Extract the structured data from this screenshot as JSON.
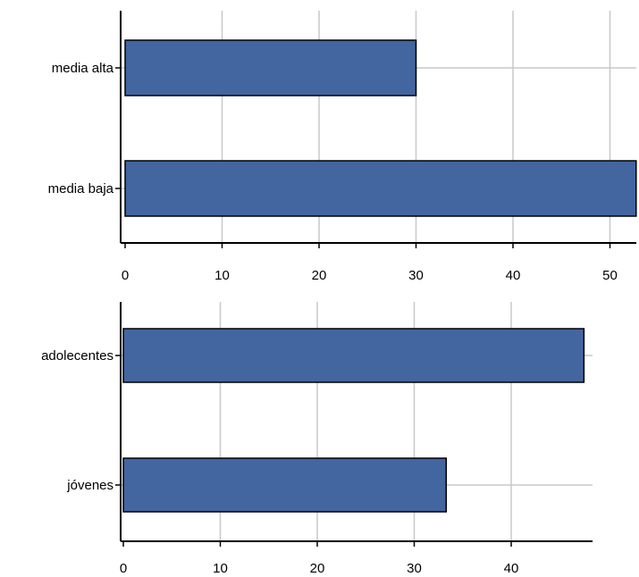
{
  "chart_data": [
    {
      "type": "bar",
      "orientation": "horizontal",
      "categories": [
        "media alta",
        "media baja"
      ],
      "values": [
        30,
        52.7
      ],
      "xlim": [
        0,
        52.7
      ],
      "xticks": [
        0,
        10,
        20,
        30,
        40,
        50
      ],
      "grid": true,
      "bar_color": "#4365a0",
      "title": "",
      "xlabel": "",
      "ylabel": ""
    },
    {
      "type": "bar",
      "orientation": "horizontal",
      "categories": [
        "adolecentes",
        "jóvenes"
      ],
      "values": [
        47.5,
        33.3
      ],
      "xlim": [
        0,
        48.3
      ],
      "xticks": [
        0,
        10,
        20,
        30,
        40
      ],
      "grid": true,
      "bar_color": "#4365a0",
      "title": "",
      "xlabel": "",
      "ylabel": ""
    }
  ]
}
